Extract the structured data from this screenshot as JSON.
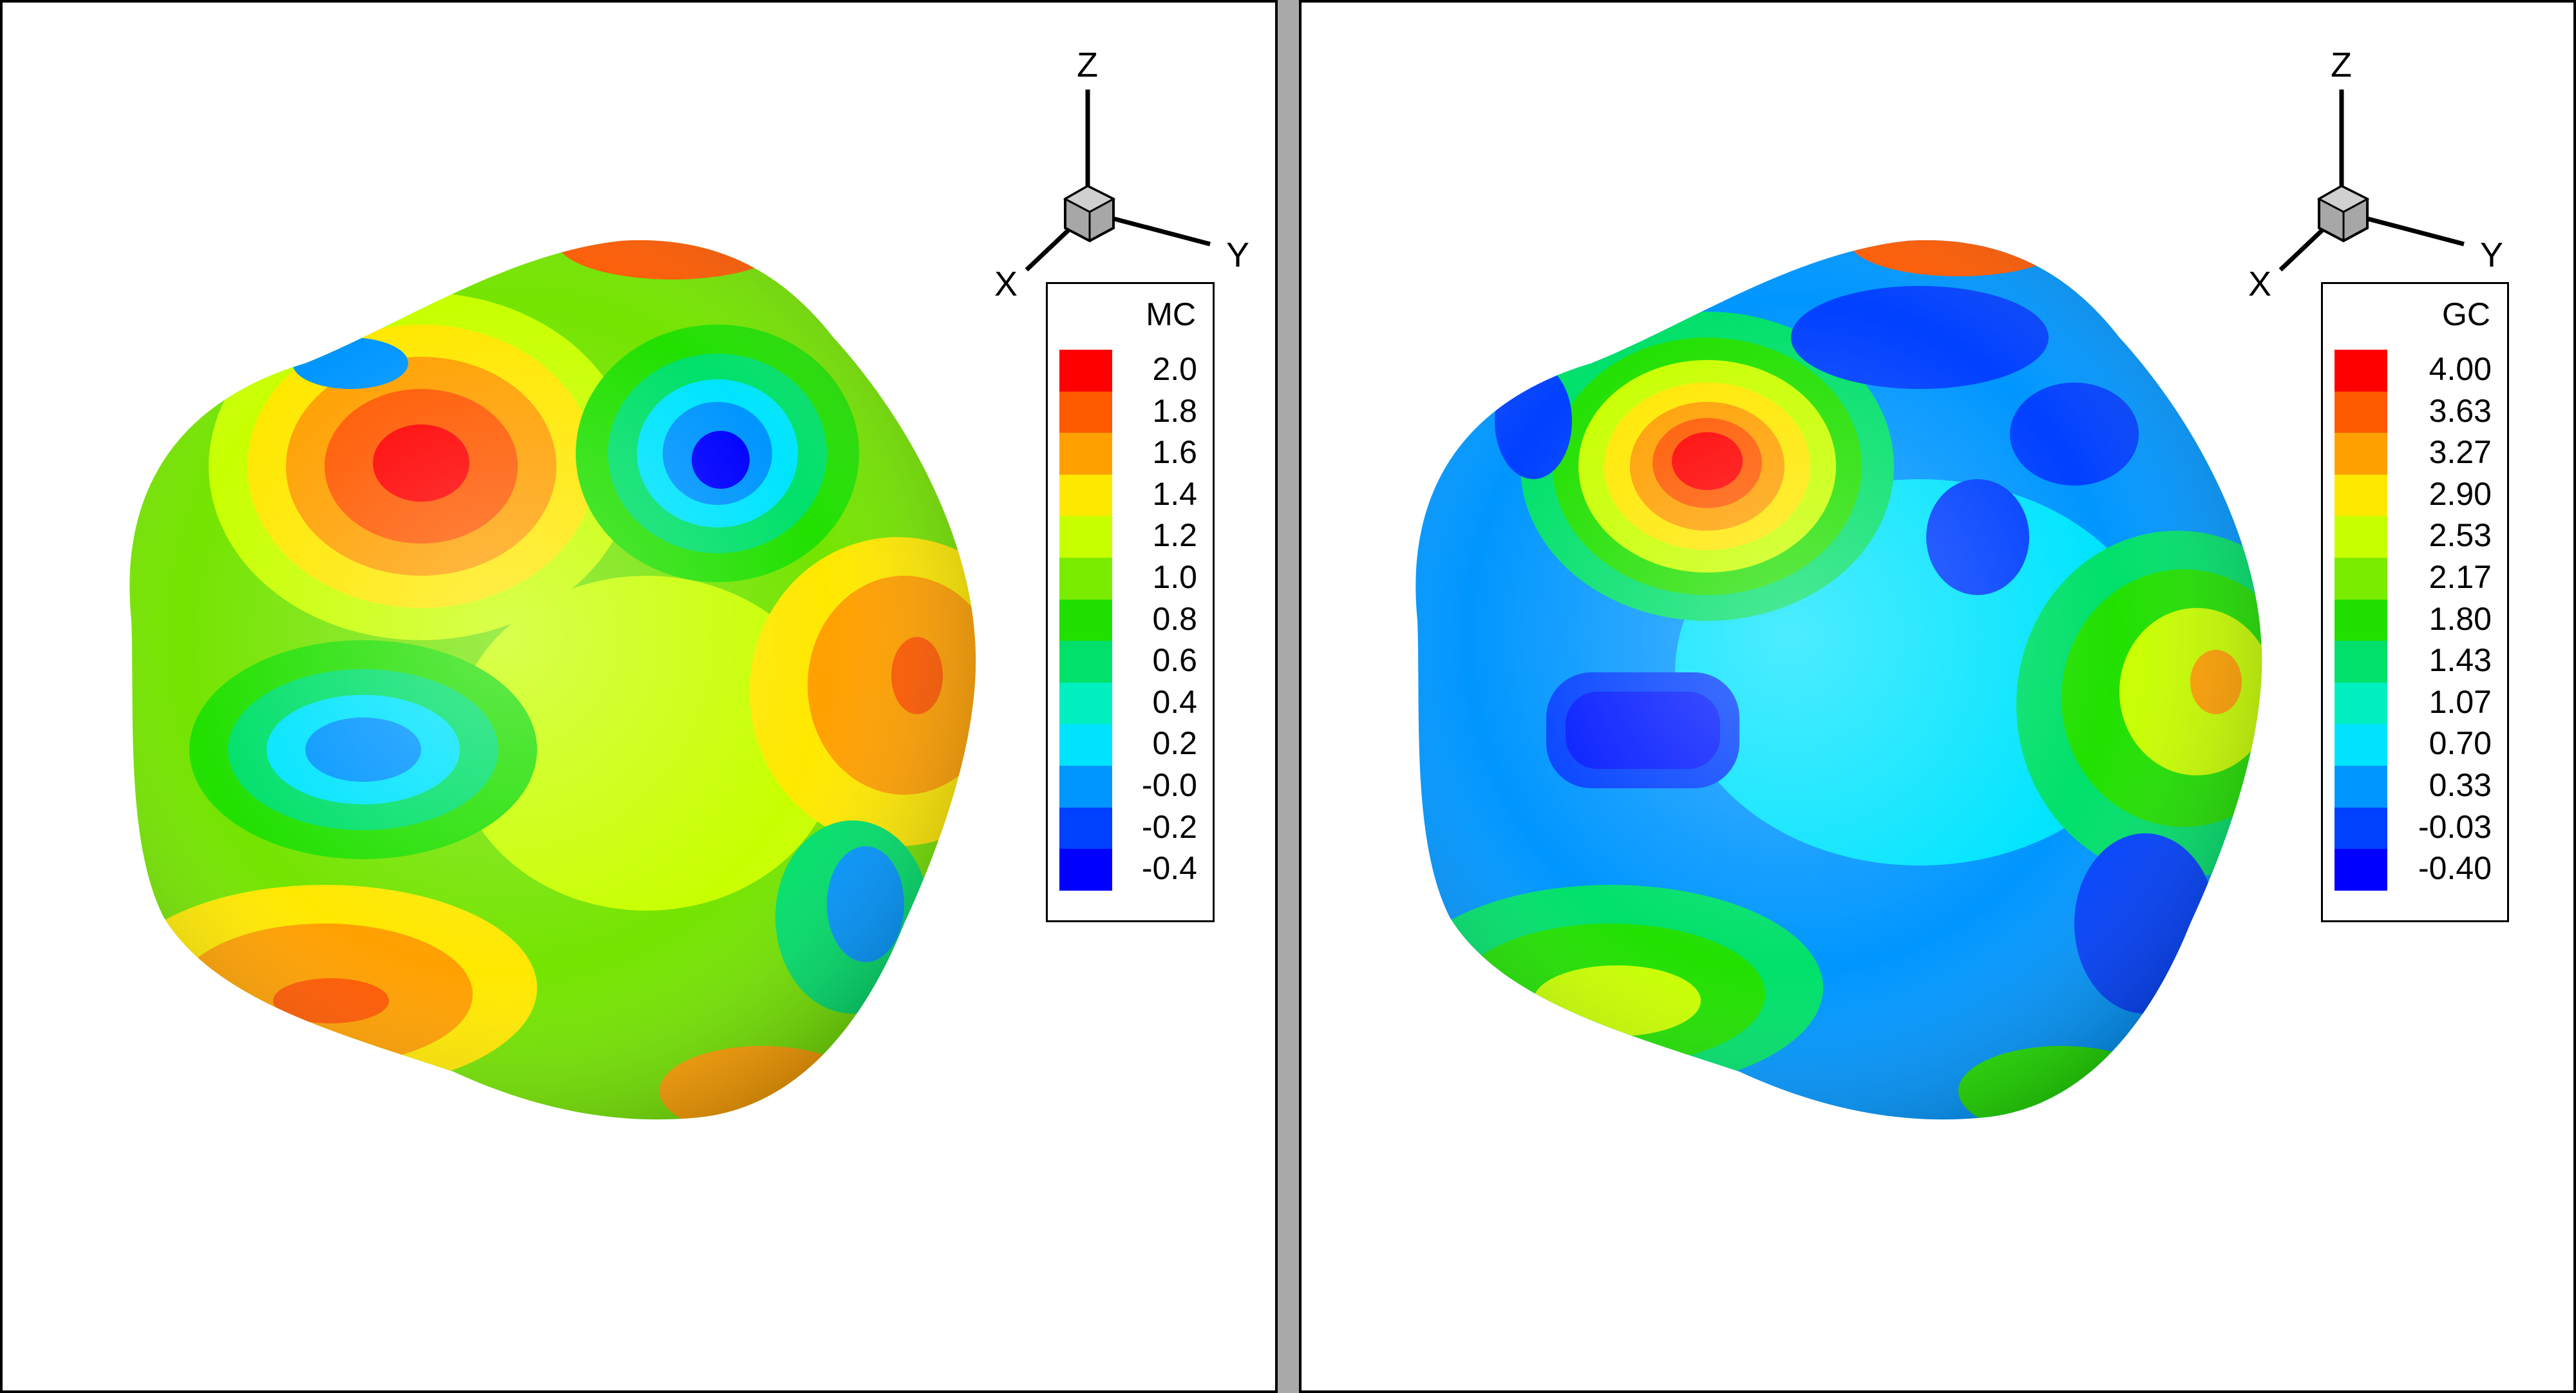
{
  "panels": [
    {
      "id": "mean-curvature",
      "legend": {
        "title": "MC",
        "entries": [
          {
            "label": "2.0",
            "color": "#ff0000"
          },
          {
            "label": "1.8",
            "color": "#ff5a00"
          },
          {
            "label": "1.6",
            "color": "#ffa000"
          },
          {
            "label": "1.4",
            "color": "#ffe800"
          },
          {
            "label": "1.2",
            "color": "#c8ff00"
          },
          {
            "label": "1.0",
            "color": "#7aec00"
          },
          {
            "label": "0.8",
            "color": "#21e000"
          },
          {
            "label": "0.6",
            "color": "#00e06a"
          },
          {
            "label": "0.4",
            "color": "#00f0c0"
          },
          {
            "label": "0.2",
            "color": "#00e4ff"
          },
          {
            "label": "-0.0",
            "color": "#0096ff"
          },
          {
            "label": "-0.2",
            "color": "#0040ff"
          },
          {
            "label": "-0.4",
            "color": "#0000ff"
          }
        ]
      },
      "axes": {
        "z": "Z",
        "x": "X",
        "y": "Y"
      }
    },
    {
      "id": "gaussian-curvature",
      "legend": {
        "title": "GC",
        "entries": [
          {
            "label": "4.00",
            "color": "#ff0000"
          },
          {
            "label": "3.63",
            "color": "#ff5a00"
          },
          {
            "label": "3.27",
            "color": "#ffa000"
          },
          {
            "label": "2.90",
            "color": "#ffe800"
          },
          {
            "label": "2.53",
            "color": "#c8ff00"
          },
          {
            "label": "2.17",
            "color": "#7aec00"
          },
          {
            "label": "1.80",
            "color": "#21e000"
          },
          {
            "label": "1.43",
            "color": "#00e06a"
          },
          {
            "label": "1.07",
            "color": "#00f0c0"
          },
          {
            "label": "0.70",
            "color": "#00e4ff"
          },
          {
            "label": "0.33",
            "color": "#0096ff"
          },
          {
            "label": "-0.03",
            "color": "#0040ff"
          },
          {
            "label": "-0.40",
            "color": "#0000ff"
          }
        ]
      },
      "axes": {
        "z": "Z",
        "x": "X",
        "y": "Y"
      }
    }
  ]
}
